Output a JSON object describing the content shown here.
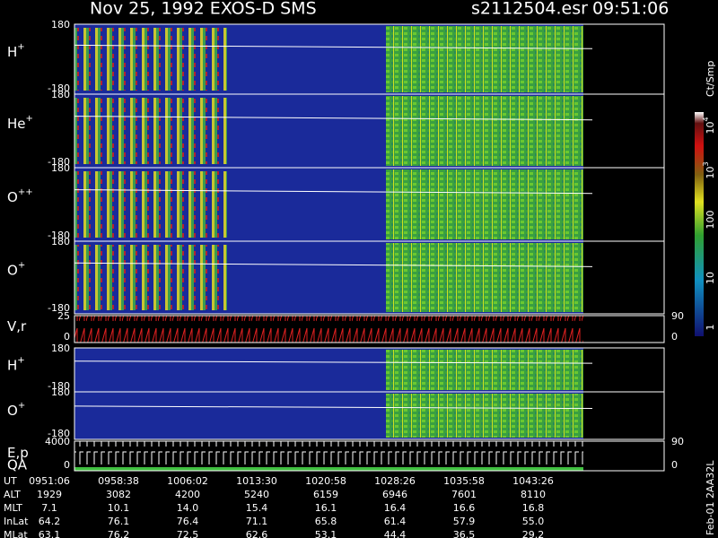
{
  "header": {
    "title": "Nov 25, 1992   EXOS-D SMS",
    "file": "s2112504.esr",
    "time": "09:51:06"
  },
  "panels": [
    {
      "label": {
        "base": "H",
        "sup": "+"
      },
      "top": "180",
      "bottom": "-180"
    },
    {
      "label": {
        "base": "He",
        "sup": "+"
      },
      "top": "180",
      "bottom": "-180"
    },
    {
      "label": {
        "base": "O",
        "sup": "++"
      },
      "top": "180",
      "bottom": "-180"
    },
    {
      "label": {
        "base": "O",
        "sup": "+"
      },
      "top": "180",
      "bottom": "-180"
    },
    {
      "label": {
        "base": "V,r",
        "sup": ""
      },
      "top": "25",
      "bottom": "0",
      "right_top": "90",
      "right_bottom": "0"
    },
    {
      "label": {
        "base": "H",
        "sup": "+"
      },
      "top": "180",
      "bottom": "-180"
    },
    {
      "label": {
        "base": "O",
        "sup": "+"
      },
      "top": "180",
      "bottom": "-180"
    },
    {
      "label": {
        "base": "E,p",
        "sup": ""
      },
      "label2": "QA",
      "top": "4000",
      "bottom": "0",
      "right_top": "90",
      "right_bottom": "0"
    }
  ],
  "colorbar": {
    "unit": "Ct/Smp",
    "ticks": [
      {
        "base": "10",
        "sup": "4"
      },
      {
        "base": "10",
        "sup": "3"
      },
      {
        "base": "100",
        "sup": ""
      },
      {
        "base": "10",
        "sup": ""
      },
      {
        "base": "1",
        "sup": ""
      }
    ]
  },
  "footer": {
    "rows": [
      {
        "label": "UT",
        "values": [
          "0951:06",
          "0958:38",
          "1006:02",
          "1013:30",
          "1020:58",
          "1028:26",
          "1035:58",
          "1043:26"
        ]
      },
      {
        "label": "ALT",
        "values": [
          "1929",
          "3082",
          "4200",
          "5240",
          "6159",
          "6946",
          "7601",
          "8110"
        ]
      },
      {
        "label": "MLT",
        "values": [
          "7.1",
          "10.1",
          "14.0",
          "15.4",
          "16.1",
          "16.4",
          "16.6",
          "16.8"
        ]
      },
      {
        "label": "InLat",
        "values": [
          "64.2",
          "76.1",
          "76.4",
          "71.1",
          "65.8",
          "61.4",
          "57.9",
          "55.0"
        ]
      },
      {
        "label": "MLat",
        "values": [
          "63.1",
          "76.2",
          "72.5",
          "62.6",
          "53.1",
          "44.4",
          "36.5",
          "29.2"
        ]
      }
    ]
  },
  "stamp": "Feb-01 2AA32L"
}
